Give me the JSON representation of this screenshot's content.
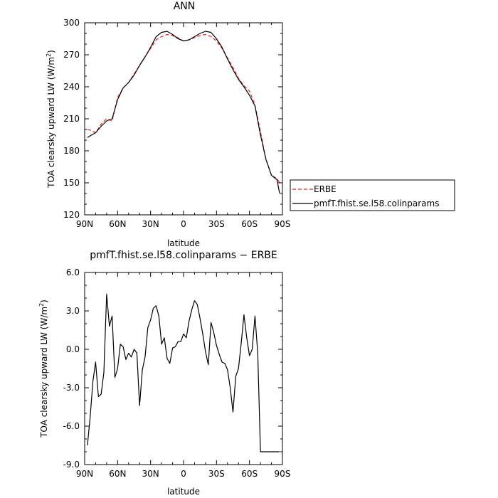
{
  "chart_data": [
    {
      "type": "line",
      "title": "ANN",
      "xlabel": "latitude",
      "ylabel": "TOA clearsky upward LW (W/m²)",
      "ylabel_main": "TOA clearsky upward LW (W/m",
      "ylabel_sup": "2",
      "ylabel_end": ")",
      "xlim": [
        90,
        -90
      ],
      "ylim": [
        120,
        300
      ],
      "yticks": [
        120,
        150,
        180,
        210,
        240,
        270,
        300
      ],
      "ytick_labels": [
        "120",
        "150",
        "180",
        "210",
        "240",
        "270",
        "300"
      ],
      "xticks": [
        90,
        60,
        30,
        0,
        -30,
        -60,
        -90
      ],
      "xtick_labels": [
        "90N",
        "60N",
        "30N",
        "0",
        "30S",
        "60S",
        "90S"
      ],
      "legend_position": "right",
      "series": [
        {
          "name": "ERBE",
          "color": "#e8211c",
          "dash": "dashed",
          "x": [
            87.5,
            85,
            80,
            75,
            70,
            65,
            60,
            55,
            50,
            45,
            40,
            35,
            30,
            25,
            20,
            15,
            10,
            5,
            0,
            -5,
            -10,
            -15,
            -20,
            -25,
            -30,
            -35,
            -40,
            -45,
            -50,
            -55,
            -60,
            -65,
            -70,
            -75,
            -80,
            -85,
            -87.5
          ],
          "y": [
            200,
            199.5,
            197,
            205,
            210,
            208,
            230,
            239,
            244,
            252,
            260,
            268,
            276,
            284,
            287,
            289,
            288,
            286,
            283,
            284,
            286,
            288,
            289,
            287,
            283,
            276,
            267,
            258,
            248,
            241,
            236,
            223,
            198,
            172,
            157,
            154,
            150
          ]
        },
        {
          "name": "pmfT.fhist.se.l58.colinparams",
          "color": "#000000",
          "dash": "solid",
          "x": [
            87.5,
            85,
            80,
            75,
            70,
            65,
            60,
            55,
            50,
            45,
            40,
            35,
            30,
            25,
            20,
            15,
            10,
            5,
            0,
            -5,
            -10,
            -15,
            -20,
            -25,
            -30,
            -35,
            -40,
            -45,
            -50,
            -55,
            -60,
            -65,
            -70,
            -75,
            -80,
            -85,
            -87.5
          ],
          "y": [
            192.5,
            194,
            197,
            203,
            208,
            210,
            228,
            239,
            244,
            251,
            260,
            268,
            277,
            287,
            291,
            292,
            289,
            285,
            283,
            284,
            287,
            290,
            292,
            291,
            285,
            277,
            266,
            256,
            247,
            240,
            232,
            222,
            195,
            172,
            157,
            153,
            140
          ]
        }
      ]
    },
    {
      "type": "line",
      "title": "pmfT.fhist.se.l58.colinparams − ERBE",
      "xlabel": "latitude",
      "ylabel": "TOA clearsky upward LW (W/m²)",
      "ylabel_main": "TOA clearsky upward LW (W/m",
      "ylabel_sup": "2",
      "ylabel_end": ")",
      "xlim": [
        90,
        -90
      ],
      "ylim": [
        -9,
        6
      ],
      "yticks": [
        -9,
        -6,
        -3,
        0,
        3,
        6
      ],
      "ytick_labels": [
        "-9.0",
        "-6.0",
        "-3.0",
        "0.0",
        "3.0",
        "6.0"
      ],
      "xticks": [
        90,
        60,
        30,
        0,
        -30,
        -60,
        -90
      ],
      "xtick_labels": [
        "90N",
        "60N",
        "30N",
        "0",
        "30S",
        "60S",
        "90S"
      ],
      "series": [
        {
          "name": "",
          "color": "#000000",
          "dash": "solid",
          "x": [
            87.5,
            85,
            82.5,
            80,
            77.5,
            75,
            72.5,
            70,
            67.5,
            65,
            62.5,
            60,
            57.5,
            55,
            52.5,
            50,
            47.5,
            45,
            42.5,
            40,
            37.5,
            35,
            32.5,
            30,
            27.5,
            25,
            22.5,
            20,
            17.5,
            15,
            12.5,
            10,
            7.5,
            5,
            2.5,
            0,
            -2.5,
            -5,
            -7.5,
            -10,
            -12.5,
            -15,
            -17.5,
            -20,
            -22.5,
            -25,
            -27.5,
            -30,
            -32.5,
            -35,
            -37.5,
            -40,
            -42.5,
            -45,
            -47.5,
            -50,
            -52.5,
            -55,
            -57.5,
            -60,
            -62.5,
            -65,
            -67.5,
            -70,
            -72.5,
            -75,
            -77.5,
            -80,
            -82.5,
            -85,
            -87.5
          ],
          "y": [
            -7.5,
            -5.3,
            -2.5,
            -1.0,
            -3.7,
            -3.5,
            -1.8,
            4.3,
            1.8,
            2.6,
            -2.2,
            -1.5,
            0.4,
            0.2,
            -0.8,
            -0.3,
            -0.6,
            0.0,
            -0.3,
            -4.4,
            -1.6,
            -0.6,
            1.7,
            2.3,
            3.2,
            3.4,
            2.6,
            0.4,
            0.9,
            -0.7,
            -1.1,
            0.1,
            0.2,
            0.6,
            0.6,
            1.2,
            0.9,
            2.2,
            3.1,
            3.8,
            3.5,
            2.4,
            1.2,
            -0.2,
            -1.2,
            2.1,
            1.3,
            0.3,
            -0.4,
            -1.0,
            -1.1,
            -1.6,
            -3.0,
            -4.9,
            -2.1,
            -1.5,
            0.5,
            2.7,
            0.9,
            -0.5,
            0.0,
            2.6,
            -0.3,
            -8.0,
            -8.0,
            -8.0,
            -8.0,
            -8.0,
            -8.0,
            -8.0,
            -8.0
          ]
        }
      ]
    }
  ]
}
